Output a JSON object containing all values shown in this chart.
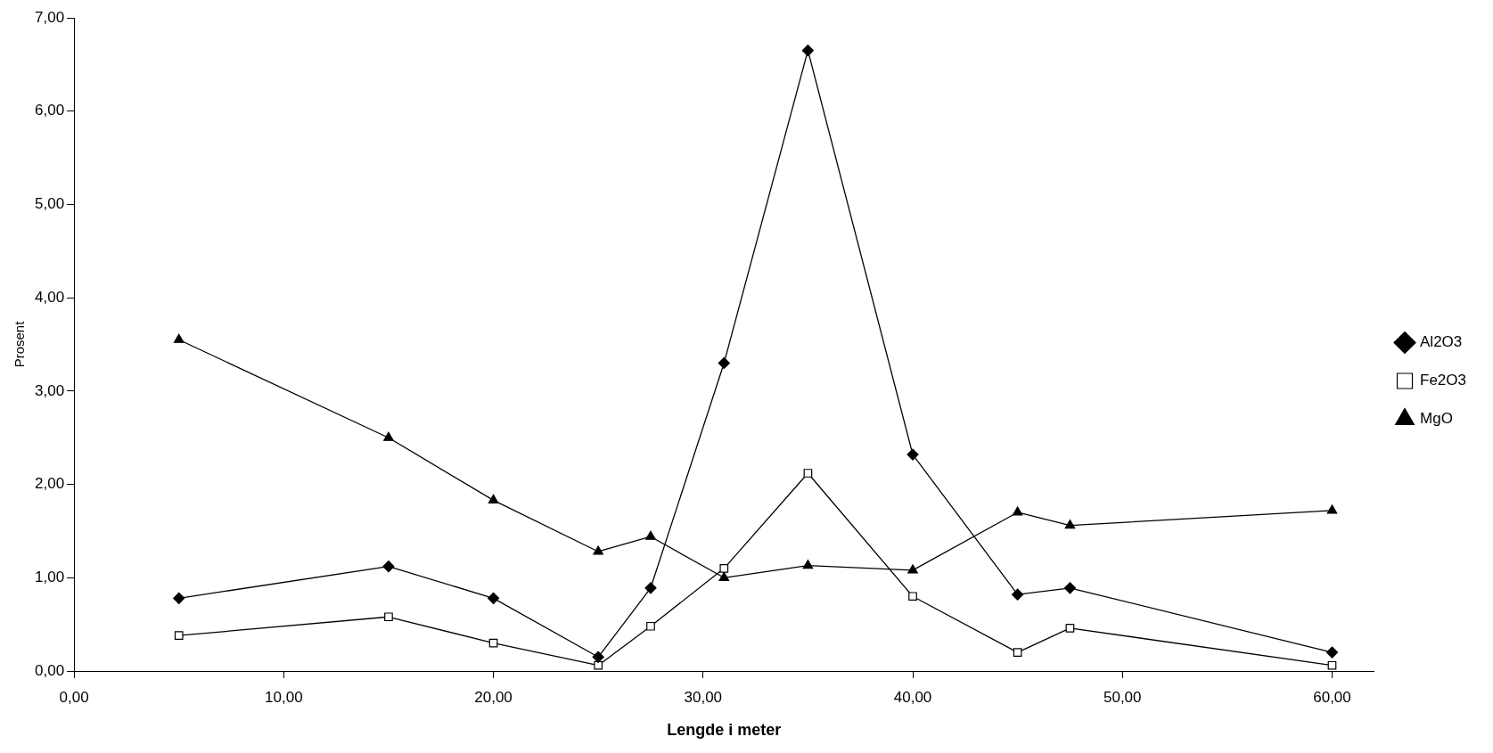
{
  "chart_data": {
    "type": "line",
    "xlabel": "Lengde i meter",
    "ylabel": "Prosent",
    "x": [
      5,
      15,
      20,
      25,
      27.5,
      31,
      35,
      40,
      45,
      47.5,
      60
    ],
    "series": [
      {
        "name": "Al2O3",
        "color": "#000000",
        "marker": "diamond",
        "values": [
          0.78,
          1.12,
          0.78,
          0.15,
          0.89,
          3.3,
          6.65,
          2.32,
          0.82,
          0.89,
          0.2
        ]
      },
      {
        "name": "Fe2O3",
        "color": "#000000",
        "marker": "square",
        "values": [
          0.38,
          0.58,
          0.3,
          0.06,
          0.48,
          1.1,
          2.12,
          0.8,
          0.2,
          0.46,
          0.06
        ]
      },
      {
        "name": "MgO",
        "color": "#000000",
        "marker": "triangle",
        "values": [
          3.55,
          2.5,
          1.83,
          1.28,
          1.44,
          1.0,
          1.13,
          1.08,
          1.7,
          1.56,
          1.72
        ]
      }
    ],
    "xlim": [
      0,
      62
    ],
    "ylim": [
      0,
      7
    ],
    "xticks": [
      {
        "value": 0,
        "label": "0,00"
      },
      {
        "value": 10,
        "label": "10,00"
      },
      {
        "value": 20,
        "label": "20,00"
      },
      {
        "value": 30,
        "label": "30,00"
      },
      {
        "value": 40,
        "label": "40,00"
      },
      {
        "value": 50,
        "label": "50,00"
      },
      {
        "value": 60,
        "label": "60,00"
      }
    ],
    "yticks": [
      {
        "value": 0,
        "label": "0,00"
      },
      {
        "value": 1,
        "label": "1,00"
      },
      {
        "value": 2,
        "label": "2,00"
      },
      {
        "value": 3,
        "label": "3,00"
      },
      {
        "value": 4,
        "label": "4,00"
      },
      {
        "value": 5,
        "label": "5,00"
      },
      {
        "value": 6,
        "label": "6,00"
      },
      {
        "value": 7,
        "label": "7,00"
      }
    ],
    "grid": false,
    "legend": "right",
    "line_style": "solid"
  }
}
